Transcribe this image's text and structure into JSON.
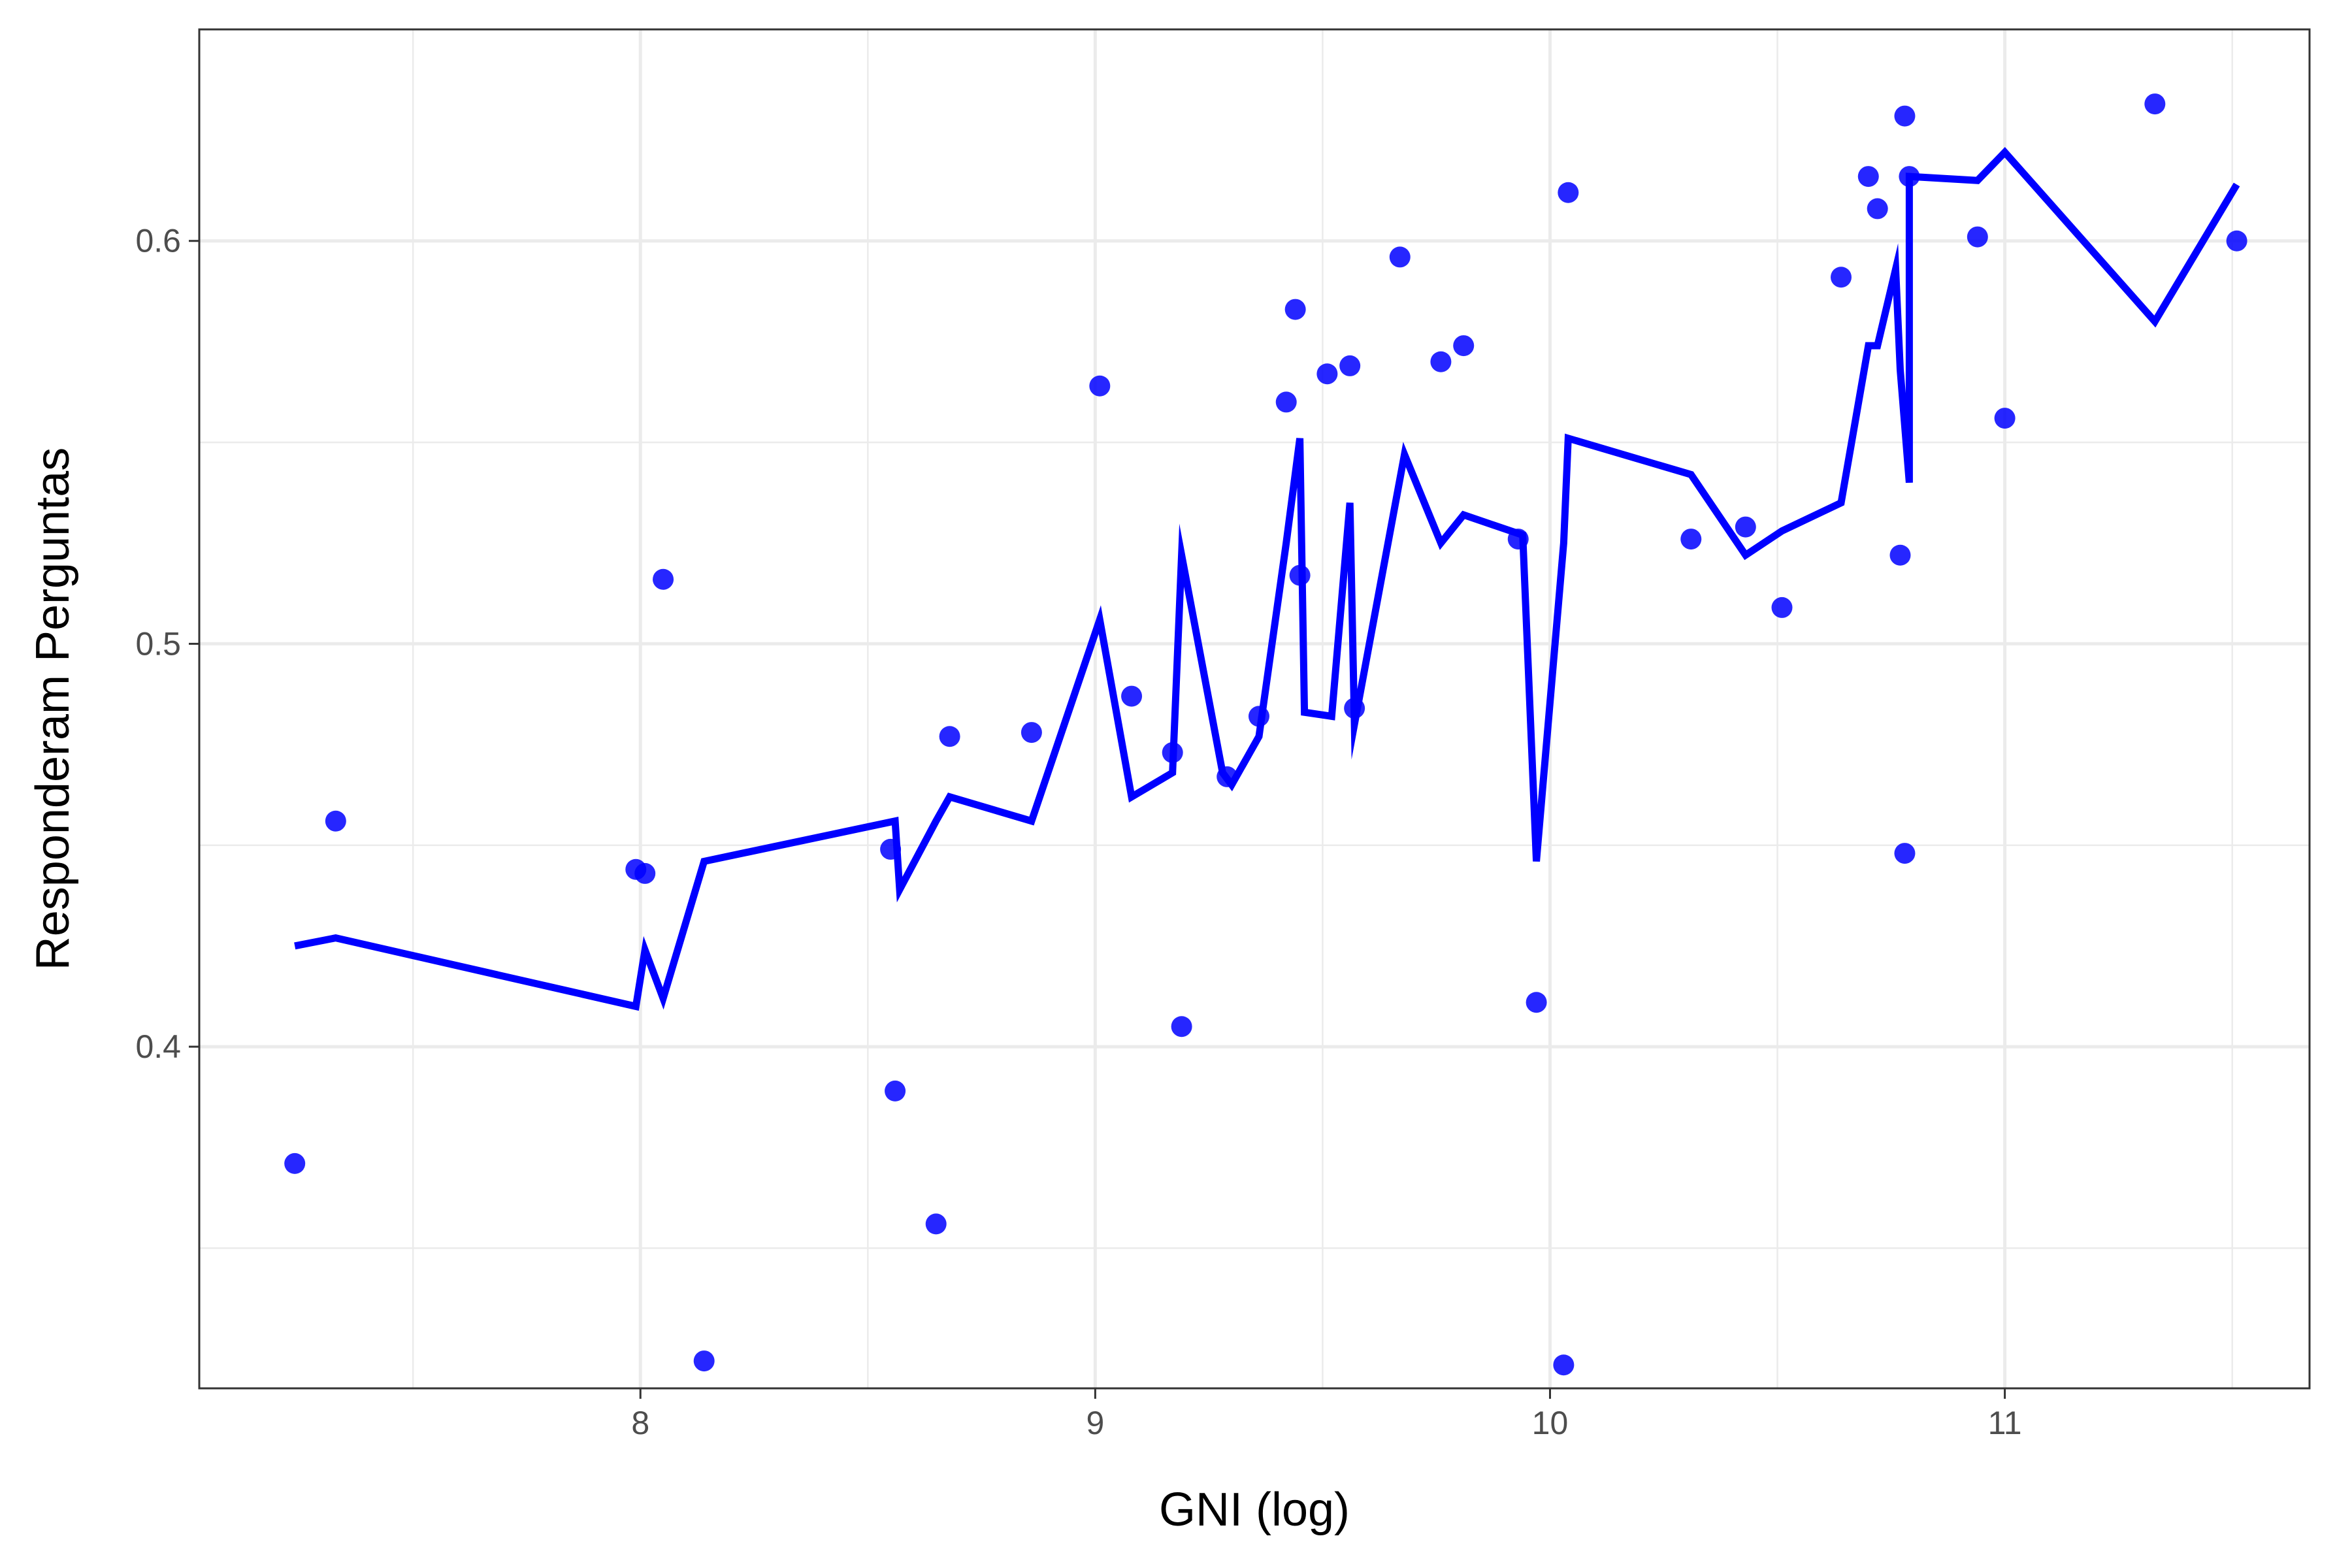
{
  "chart_data": {
    "type": "scatter",
    "title": "",
    "xlabel": "GNI (log)",
    "ylabel": "Responderam Perguntas",
    "xlim": [
      7.03,
      11.67
    ],
    "ylim": [
      0.3152,
      0.6525
    ],
    "x_ticks": [
      8,
      9,
      10,
      11
    ],
    "x_tick_labels": [
      "8",
      "9",
      "10",
      "11"
    ],
    "y_ticks": [
      0.4,
      0.5,
      0.6
    ],
    "y_tick_labels": [
      "0.4",
      "0.5",
      "0.6"
    ],
    "x_minor_ticks": [
      7.5,
      8.5,
      9.5,
      10.5,
      11.5
    ],
    "y_minor_ticks": [
      0.35,
      0.45,
      0.55
    ],
    "grid": true,
    "legend": "none",
    "colors": {
      "points": "#0000ff",
      "line": "#0000ff",
      "grid": "#ebebeb",
      "panel_border": "#333333"
    },
    "series": [
      {
        "type": "scatter",
        "points": [
          {
            "x": 7.24,
            "y": 0.371
          },
          {
            "x": 7.33,
            "y": 0.456
          },
          {
            "x": 7.99,
            "y": 0.444
          },
          {
            "x": 8.01,
            "y": 0.443
          },
          {
            "x": 8.05,
            "y": 0.516
          },
          {
            "x": 8.14,
            "y": 0.322
          },
          {
            "x": 8.55,
            "y": 0.449
          },
          {
            "x": 8.56,
            "y": 0.389
          },
          {
            "x": 8.65,
            "y": 0.356
          },
          {
            "x": 8.68,
            "y": 0.477
          },
          {
            "x": 8.86,
            "y": 0.478
          },
          {
            "x": 9.01,
            "y": 0.564
          },
          {
            "x": 9.08,
            "y": 0.487
          },
          {
            "x": 9.17,
            "y": 0.473
          },
          {
            "x": 9.19,
            "y": 0.405
          },
          {
            "x": 9.29,
            "y": 0.467
          },
          {
            "x": 9.36,
            "y": 0.482
          },
          {
            "x": 9.42,
            "y": 0.56
          },
          {
            "x": 9.44,
            "y": 0.583
          },
          {
            "x": 9.45,
            "y": 0.517
          },
          {
            "x": 9.51,
            "y": 0.567
          },
          {
            "x": 9.56,
            "y": 0.569
          },
          {
            "x": 9.57,
            "y": 0.484
          },
          {
            "x": 9.67,
            "y": 0.596
          },
          {
            "x": 9.76,
            "y": 0.57
          },
          {
            "x": 9.81,
            "y": 0.574
          },
          {
            "x": 9.93,
            "y": 0.526
          },
          {
            "x": 9.97,
            "y": 0.411
          },
          {
            "x": 10.03,
            "y": 0.321
          },
          {
            "x": 10.04,
            "y": 0.612
          },
          {
            "x": 10.31,
            "y": 0.526
          },
          {
            "x": 10.43,
            "y": 0.529
          },
          {
            "x": 10.51,
            "y": 0.509
          },
          {
            "x": 10.64,
            "y": 0.591
          },
          {
            "x": 10.7,
            "y": 0.616
          },
          {
            "x": 10.72,
            "y": 0.608
          },
          {
            "x": 10.77,
            "y": 0.522
          },
          {
            "x": 10.78,
            "y": 0.448
          },
          {
            "x": 10.78,
            "y": 0.631
          },
          {
            "x": 10.79,
            "y": 0.616
          },
          {
            "x": 10.94,
            "y": 0.601
          },
          {
            "x": 11.0,
            "y": 0.556
          },
          {
            "x": 11.33,
            "y": 0.634
          },
          {
            "x": 11.51,
            "y": 0.6
          }
        ]
      },
      {
        "type": "line",
        "points": [
          {
            "x": 7.24,
            "y": 0.425
          },
          {
            "x": 7.33,
            "y": 0.427
          },
          {
            "x": 7.99,
            "y": 0.41
          },
          {
            "x": 8.01,
            "y": 0.424
          },
          {
            "x": 8.05,
            "y": 0.412
          },
          {
            "x": 8.14,
            "y": 0.446
          },
          {
            "x": 8.56,
            "y": 0.456
          },
          {
            "x": 8.57,
            "y": 0.439
          },
          {
            "x": 8.65,
            "y": 0.456
          },
          {
            "x": 8.68,
            "y": 0.462
          },
          {
            "x": 8.86,
            "y": 0.456
          },
          {
            "x": 9.01,
            "y": 0.506
          },
          {
            "x": 9.08,
            "y": 0.462
          },
          {
            "x": 9.17,
            "y": 0.468
          },
          {
            "x": 9.19,
            "y": 0.522
          },
          {
            "x": 9.28,
            "y": 0.468
          },
          {
            "x": 9.3,
            "y": 0.465
          },
          {
            "x": 9.36,
            "y": 0.477
          },
          {
            "x": 9.42,
            "y": 0.525
          },
          {
            "x": 9.45,
            "y": 0.551
          },
          {
            "x": 9.46,
            "y": 0.483
          },
          {
            "x": 9.52,
            "y": 0.482
          },
          {
            "x": 9.56,
            "y": 0.535
          },
          {
            "x": 9.57,
            "y": 0.48
          },
          {
            "x": 9.68,
            "y": 0.547
          },
          {
            "x": 9.76,
            "y": 0.525
          },
          {
            "x": 9.81,
            "y": 0.532
          },
          {
            "x": 9.94,
            "y": 0.527
          },
          {
            "x": 9.97,
            "y": 0.446
          },
          {
            "x": 10.03,
            "y": 0.525
          },
          {
            "x": 10.04,
            "y": 0.551
          },
          {
            "x": 10.31,
            "y": 0.542
          },
          {
            "x": 10.43,
            "y": 0.522
          },
          {
            "x": 10.51,
            "y": 0.528
          },
          {
            "x": 10.64,
            "y": 0.535
          },
          {
            "x": 10.7,
            "y": 0.574
          },
          {
            "x": 10.72,
            "y": 0.574
          },
          {
            "x": 10.76,
            "y": 0.593
          },
          {
            "x": 10.77,
            "y": 0.568
          },
          {
            "x": 10.79,
            "y": 0.54
          },
          {
            "x": 10.79,
            "y": 0.616
          },
          {
            "x": 10.94,
            "y": 0.615
          },
          {
            "x": 11.0,
            "y": 0.622
          },
          {
            "x": 11.33,
            "y": 0.58
          },
          {
            "x": 11.51,
            "y": 0.614
          }
        ]
      }
    ]
  }
}
